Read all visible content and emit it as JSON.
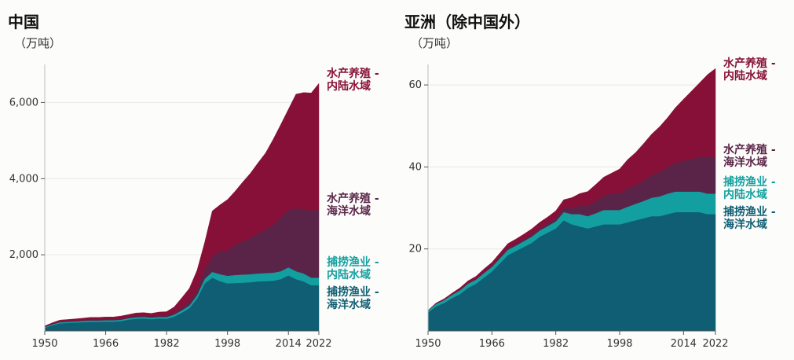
{
  "chart_data": [
    {
      "type": "area",
      "title": "中国",
      "unit": "（万吨）",
      "x": [
        1950,
        1952,
        1954,
        1956,
        1958,
        1960,
        1962,
        1964,
        1966,
        1968,
        1970,
        1972,
        1974,
        1976,
        1978,
        1980,
        1982,
        1984,
        1986,
        1988,
        1990,
        1992,
        1994,
        1996,
        1998,
        2000,
        2002,
        2004,
        2006,
        2008,
        2010,
        2012,
        2014,
        2016,
        2018,
        2020,
        2022
      ],
      "xticks": [
        1950,
        1966,
        1982,
        1998,
        2014,
        2022
      ],
      "xticklabels": [
        "1950",
        "1966",
        "1982",
        "1998",
        "2014",
        "2022"
      ],
      "ylim": [
        0,
        7000
      ],
      "yticks": [
        2000,
        4000,
        6000
      ],
      "yticklabels": [
        "2,000",
        "4,000",
        "6,000"
      ],
      "stack_order": [
        "海洋捕捞",
        "内陆捕捞",
        "海洋养殖",
        "内陆养殖"
      ],
      "series": [
        {
          "name": "捕捞渔业 - 海洋水域",
          "color": "#0f5e73",
          "values": [
            80,
            150,
            200,
            210,
            220,
            230,
            240,
            240,
            245,
            245,
            260,
            300,
            320,
            330,
            310,
            330,
            320,
            380,
            480,
            600,
            850,
            1250,
            1400,
            1310,
            1250,
            1260,
            1270,
            1280,
            1300,
            1310,
            1320,
            1360,
            1460,
            1360,
            1300,
            1200,
            1200
          ]
        },
        {
          "name": "捕捞渔业 - 内陆水域",
          "color": "#139fa0",
          "values": [
            20,
            25,
            30,
            30,
            30,
            35,
            35,
            35,
            35,
            35,
            35,
            35,
            40,
            40,
            40,
            40,
            45,
            50,
            60,
            70,
            90,
            120,
            150,
            180,
            200,
            210,
            210,
            210,
            210,
            210,
            210,
            210,
            210,
            210,
            210,
            200,
            200
          ]
        },
        {
          "name": "水产养殖 - 海洋水域",
          "color": "#5a2448",
          "values": [
            10,
            10,
            15,
            15,
            15,
            15,
            20,
            20,
            20,
            20,
            25,
            25,
            30,
            30,
            30,
            35,
            40,
            50,
            80,
            100,
            150,
            250,
            400,
            620,
            650,
            800,
            880,
            950,
            1050,
            1150,
            1250,
            1400,
            1500,
            1650,
            1700,
            1750,
            1800
          ]
        },
        {
          "name": "水产养殖 - 内陆水域",
          "color": "#871038",
          "values": [
            20,
            30,
            40,
            45,
            50,
            55,
            60,
            60,
            65,
            65,
            70,
            70,
            80,
            80,
            80,
            90,
            100,
            150,
            250,
            350,
            500,
            700,
            1200,
            1200,
            1350,
            1400,
            1550,
            1700,
            1850,
            2000,
            2250,
            2450,
            2650,
            3000,
            3050,
            3100,
            3300
          ]
        }
      ]
    },
    {
      "type": "area",
      "title": "亚洲（除中国外）",
      "unit": "（万吨）",
      "x": [
        1950,
        1952,
        1954,
        1956,
        1958,
        1960,
        1962,
        1964,
        1966,
        1968,
        1970,
        1972,
        1974,
        1976,
        1978,
        1980,
        1982,
        1984,
        1986,
        1988,
        1990,
        1992,
        1994,
        1996,
        1998,
        2000,
        2002,
        2004,
        2006,
        2008,
        2010,
        2012,
        2014,
        2016,
        2018,
        2020,
        2022
      ],
      "xticks": [
        1950,
        1966,
        1982,
        1998,
        2014,
        2022
      ],
      "xticklabels": [
        "1950",
        "1966",
        "1982",
        "1998",
        "2014",
        "2022"
      ],
      "ylim": [
        0,
        65
      ],
      "yticks": [
        20,
        40,
        60
      ],
      "yticklabels": [
        "20",
        "40",
        "60"
      ],
      "stack_order": [
        "海洋捕捞",
        "内陆捕捞",
        "海洋养殖",
        "内陆养殖"
      ],
      "series": [
        {
          "name": "捕捞渔业 - 海洋水域",
          "color": "#0f5e73",
          "values": [
            4.5,
            6.0,
            6.8,
            8.0,
            9.0,
            10.5,
            11.5,
            13.0,
            14.5,
            16.5,
            18.5,
            19.5,
            20.5,
            21.5,
            23.0,
            24.0,
            25.0,
            27.0,
            26.0,
            25.5,
            25.0,
            25.5,
            26.0,
            26.0,
            26.0,
            26.5,
            27.0,
            27.5,
            28.0,
            28.0,
            28.5,
            29.0,
            29.0,
            29.0,
            29.0,
            28.5,
            28.5
          ]
        },
        {
          "name": "捕捞渔业 - 内陆水域",
          "color": "#139fa0",
          "values": [
            0.5,
            0.6,
            0.7,
            0.8,
            0.9,
            1.0,
            1.0,
            1.1,
            1.1,
            1.2,
            1.3,
            1.3,
            1.4,
            1.5,
            1.5,
            1.6,
            1.7,
            2.0,
            2.5,
            3.0,
            3.0,
            3.2,
            3.5,
            3.5,
            3.5,
            3.8,
            4.0,
            4.2,
            4.5,
            4.8,
            5.0,
            5.0,
            5.0,
            5.0,
            5.0,
            5.0,
            5.0
          ]
        },
        {
          "name": "水产养殖 - 海洋水域",
          "color": "#5a2448",
          "values": [
            0.0,
            0.1,
            0.1,
            0.1,
            0.2,
            0.2,
            0.2,
            0.3,
            0.3,
            0.4,
            0.5,
            0.5,
            0.5,
            0.6,
            0.6,
            0.7,
            0.8,
            1.0,
            1.5,
            2.0,
            2.5,
            3.0,
            3.5,
            4.0,
            4.0,
            4.5,
            4.5,
            5.0,
            5.5,
            6.0,
            6.5,
            7.0,
            7.5,
            8.0,
            8.5,
            9.0,
            9.0
          ]
        },
        {
          "name": "水产养殖 - 内陆水域",
          "color": "#871038",
          "values": [
            0.0,
            0.1,
            0.2,
            0.3,
            0.4,
            0.5,
            0.6,
            0.7,
            0.8,
            0.9,
            1.0,
            1.1,
            1.2,
            1.3,
            1.4,
            1.5,
            1.8,
            2.0,
            2.5,
            3.0,
            3.5,
            4.0,
            4.5,
            5.0,
            6.0,
            7.0,
            8.0,
            9.0,
            10.0,
            11.0,
            12.0,
            13.5,
            15.0,
            16.5,
            18.0,
            20.0,
            21.5
          ]
        }
      ]
    }
  ],
  "labels": {
    "aq_inland": [
      "水产养殖 -",
      "内陆水域"
    ],
    "aq_marine": [
      "水产养殖 -",
      "海洋水域"
    ],
    "cap_inland": [
      "捕捞渔业 -",
      "内陆水域"
    ],
    "cap_marine": [
      "捕捞渔业 -",
      "海洋水域"
    ]
  }
}
